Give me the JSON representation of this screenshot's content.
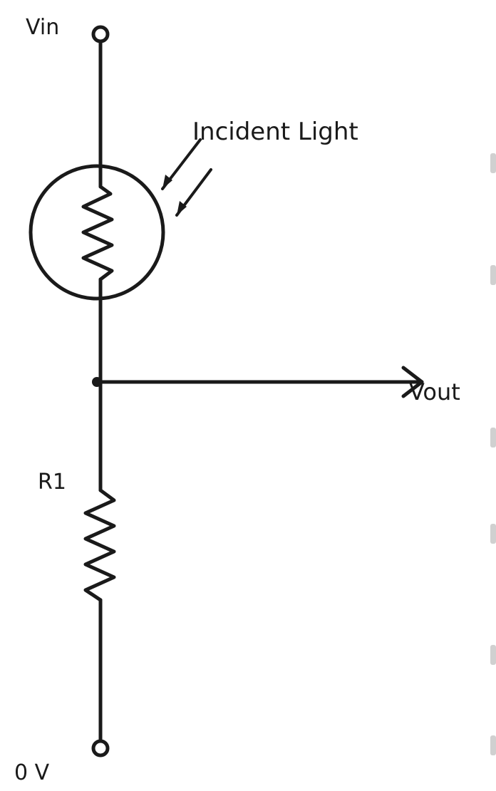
{
  "diagram": {
    "labels": {
      "vin": "Vin",
      "incident_light": "Incident Light",
      "vout": "Vout",
      "r1": "R1",
      "ground": "0 V"
    },
    "components": [
      {
        "id": "ldr",
        "type": "photoresistor"
      },
      {
        "id": "r1",
        "type": "resistor"
      }
    ],
    "terminals": [
      "Vin",
      "0 V"
    ],
    "output": "Vout",
    "colors": {
      "line": "#1a1a1a",
      "background": "#ffffff"
    }
  }
}
